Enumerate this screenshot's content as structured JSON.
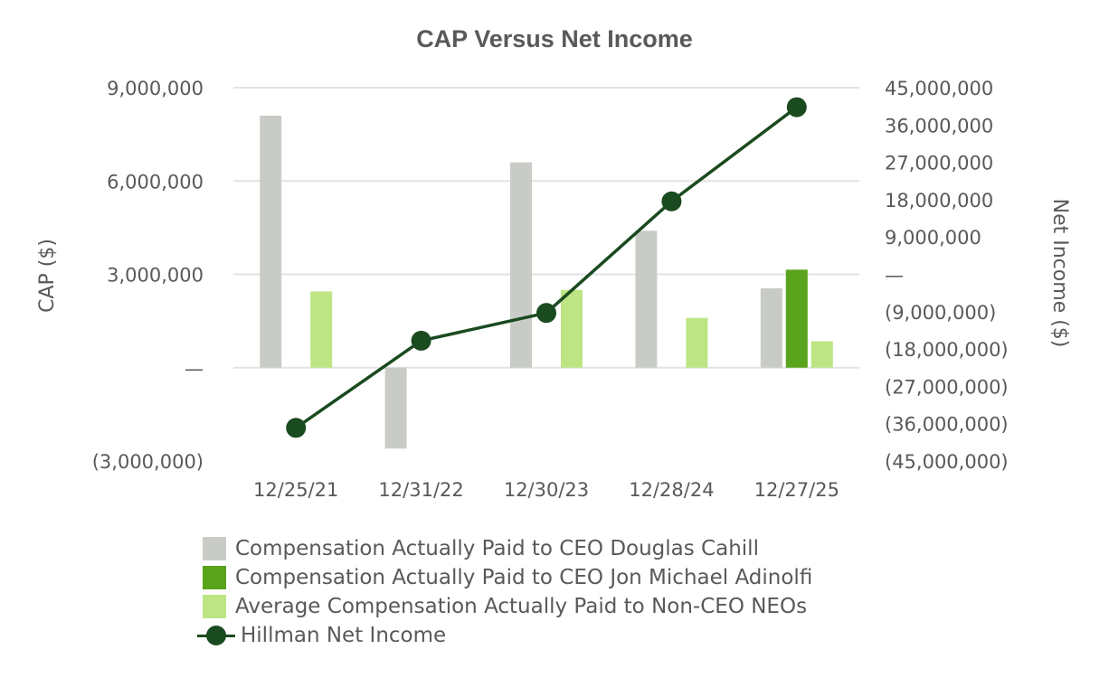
{
  "chart_data": {
    "type": "bar",
    "title": "CAP Versus Net Income",
    "categories": [
      "12/25/21",
      "12/31/22",
      "12/30/23",
      "12/28/24",
      "12/27/25"
    ],
    "ylabel": "CAP ($)",
    "y2label": "Net Income ($)",
    "ylim": [
      -3000000,
      9000000
    ],
    "y2lim": [
      -45000000,
      45000000
    ],
    "yticks": [
      "9,000,000",
      "6,000,000",
      "3,000,000",
      "—",
      "(3,000,000)"
    ],
    "y2ticks": [
      "45,000,000",
      "36,000,000",
      "27,000,000",
      "18,000,000",
      "9,000,000",
      "—",
      "(9,000,000)",
      "(18,000,000)",
      "(27,000,000)",
      "(36,000,000)",
      "(45,000,000)"
    ],
    "grid": true,
    "legend_position": "bottom",
    "series": [
      {
        "name": "Compensation Actually Paid to CEO Douglas Cahill",
        "type": "bar",
        "axis": "left",
        "color": "#c9ccc6",
        "values": [
          8100000,
          -2600000,
          6600000,
          4400000,
          2550000
        ]
      },
      {
        "name": "Compensation Actually Paid to CEO Jon Michael Adinolfi",
        "type": "bar",
        "axis": "left",
        "color": "#5aa31c",
        "values": [
          null,
          null,
          null,
          null,
          3150000
        ]
      },
      {
        "name": "Average Compensation Actually Paid to Non-CEO NEOs",
        "type": "bar",
        "axis": "left",
        "color": "#bde584",
        "values": [
          2450000,
          null,
          2500000,
          1600000,
          850000
        ]
      },
      {
        "name": "Hillman Net Income",
        "type": "line",
        "axis": "right",
        "color": "#1a4a1f",
        "values": [
          -37000000,
          -16000000,
          -9300000,
          17600000,
          40300000
        ]
      }
    ]
  }
}
